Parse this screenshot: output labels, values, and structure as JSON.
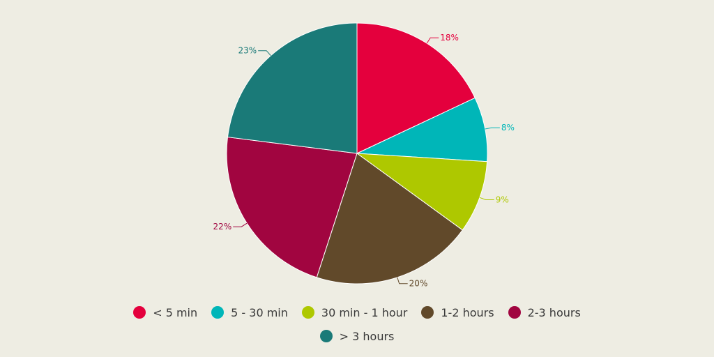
{
  "chart_data": {
    "type": "pie",
    "title": "",
    "categories": [
      "< 5 min",
      "5 - 30 min",
      "30 min - 1 hour",
      "1-2 hours",
      "2-3 hours",
      "> 3 hours"
    ],
    "values": [
      18,
      8,
      9,
      20,
      22,
      23
    ],
    "labels": [
      "18%",
      "8%",
      "9%",
      "20%",
      "22%",
      "23%"
    ],
    "colors": [
      "#e4003d",
      "#00b6b8",
      "#aec800",
      "#61492a",
      "#a10540",
      "#1a7a78"
    ],
    "legend_placement": "bottom"
  }
}
